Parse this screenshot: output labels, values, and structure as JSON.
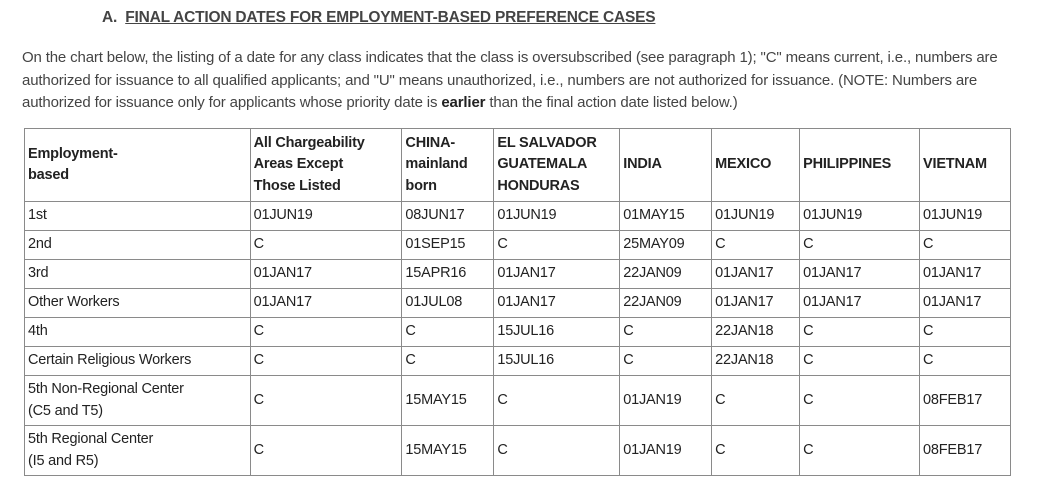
{
  "section": {
    "prefix": "A.",
    "title": "FINAL ACTION DATES FOR EMPLOYMENT-BASED PREFERENCE CASES"
  },
  "intro": {
    "text_before_bold": "On the chart below, the listing of a date for any class indicates that the class is oversubscribed (see paragraph 1); \"C\" means current, i.e., numbers are authorized for issuance to all qualified applicants; and \"U\" means unauthorized, i.e., numbers are not authorized for issuance. (NOTE: Numbers are authorized for issuance only for applicants whose priority date is ",
    "bold": "earlier",
    "text_after_bold": " than the final action date listed below.)"
  },
  "table": {
    "headers": [
      [
        "Employment-",
        "based"
      ],
      [
        "All Chargeability",
        "Areas Except",
        "Those Listed"
      ],
      [
        "CHINA-",
        "mainland",
        "born"
      ],
      [
        "EL SALVADOR",
        "GUATEMALA",
        "HONDURAS"
      ],
      [
        "INDIA"
      ],
      [
        "MEXICO"
      ],
      [
        "PHILIPPINES"
      ],
      [
        "VIETNAM"
      ]
    ],
    "rows": [
      {
        "label": [
          "1st"
        ],
        "cells": [
          "01JUN19",
          "08JUN17",
          "01JUN19",
          "01MAY15",
          "01JUN19",
          "01JUN19",
          "01JUN19"
        ]
      },
      {
        "label": [
          "2nd"
        ],
        "cells": [
          "C",
          "01SEP15",
          "C",
          "25MAY09",
          "C",
          "C",
          "C"
        ]
      },
      {
        "label": [
          "3rd"
        ],
        "cells": [
          "01JAN17",
          "15APR16",
          "01JAN17",
          "22JAN09",
          "01JAN17",
          "01JAN17",
          "01JAN17"
        ]
      },
      {
        "label": [
          "Other Workers"
        ],
        "cells": [
          "01JAN17",
          "01JUL08",
          "01JAN17",
          "22JAN09",
          "01JAN17",
          "01JAN17",
          "01JAN17"
        ]
      },
      {
        "label": [
          "4th"
        ],
        "cells": [
          "C",
          "C",
          "15JUL16",
          "C",
          "22JAN18",
          "C",
          "C"
        ]
      },
      {
        "label": [
          "Certain Religious Workers"
        ],
        "cells": [
          "C",
          "C",
          "15JUL16",
          "C",
          "22JAN18",
          "C",
          "C"
        ]
      },
      {
        "label": [
          "5th Non-Regional Center",
          "(C5 and T5)"
        ],
        "cells": [
          "C",
          "15MAY15",
          "C",
          "01JAN19",
          "C",
          "C",
          "08FEB17"
        ]
      },
      {
        "label": [
          "5th Regional Center",
          "(I5 and R5)"
        ],
        "cells": [
          "C",
          "15MAY15",
          "C",
          "01JAN19",
          "C",
          "C",
          "08FEB17"
        ]
      }
    ]
  }
}
